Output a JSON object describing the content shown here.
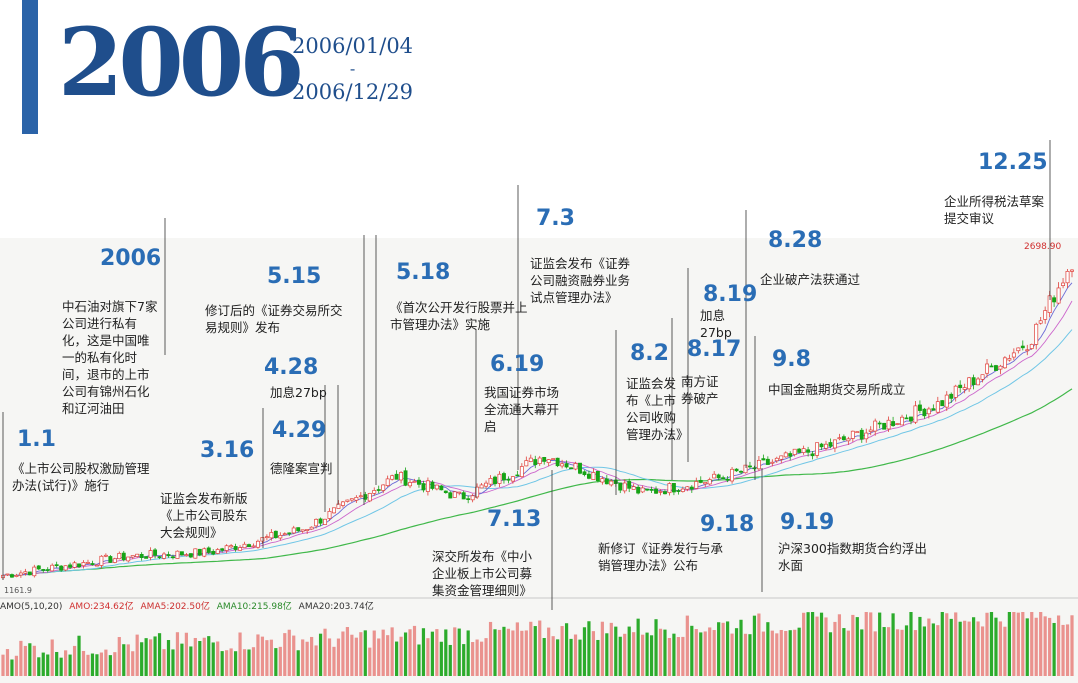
{
  "header": {
    "year": "2006",
    "start_date": "2006/01/04",
    "separator": "-",
    "end_date": "2006/12/29"
  },
  "colors": {
    "accent": "#2a63a8",
    "date_label": "#2a6db5",
    "up_candle": "#e0403a",
    "down_candle": "#16a316",
    "ma5": "#6b6bd6",
    "ma10": "#cc66cc",
    "ma20": "#70c6e6",
    "ma60": "#40b84a"
  },
  "events": [
    {
      "date": "1.1",
      "text": "《上市公司股权激励管理办法(试行)》施行"
    },
    {
      "date": "2006",
      "text": "中石油对旗下7家公司进行私有化，这是中国唯一的私有化时间，退市的上市公司有锦州石化和辽河油田"
    },
    {
      "date": "3.16",
      "text": "证监会发布新版《上市公司股东大会规则》"
    },
    {
      "date": "4.28",
      "text": "加息27bp"
    },
    {
      "date": "4.29",
      "text": "德隆案宣判"
    },
    {
      "date": "5.15",
      "text": "修订后的《证券交易所交易规则》发布"
    },
    {
      "date": "5.18",
      "text": "《首次公开发行股票并上市管理办法》实施"
    },
    {
      "date": "6.19",
      "text": "我国证券市场全流通大幕开启"
    },
    {
      "date": "7.3",
      "text": "证监会发布《证券公司融资融券业务试点管理办法》"
    },
    {
      "date": "7.13",
      "text": "深交所发布《中小企业板上市公司募集资金管理细则》"
    },
    {
      "date": "8.2",
      "text": "证监会发布《上市公司收购管理办法》"
    },
    {
      "date": "8.17",
      "text": "南方证券破产"
    },
    {
      "date": "8.19",
      "text": "加息27bp"
    },
    {
      "date": "8.28",
      "text": "企业破产法获通过"
    },
    {
      "date": "9.8",
      "text": "中国金融期货交易所成立"
    },
    {
      "date": "9.18",
      "text": "新修订《证券发行与承销管理办法》公布"
    },
    {
      "date": "9.19",
      "text": "沪深300指数期货合约浮出水面"
    },
    {
      "date": "12.25",
      "text": "企业所得税法草案提交审议"
    }
  ],
  "chart_data": {
    "type": "candlestick",
    "title": "2006",
    "price_high_label": "2698.90",
    "price_low_label": "1161.9",
    "x_range": [
      "2006/01/04",
      "2006/12/29"
    ],
    "close_approx": [
      {
        "date": "2006-01-04",
        "close": 1180
      },
      {
        "date": "2006-02-15",
        "close": 1270
      },
      {
        "date": "2006-03-15",
        "close": 1290
      },
      {
        "date": "2006-04-15",
        "close": 1400
      },
      {
        "date": "2006-05-16",
        "close": 1650
      },
      {
        "date": "2006-06-07",
        "close": 1550
      },
      {
        "date": "2006-07-05",
        "close": 1750
      },
      {
        "date": "2006-08-07",
        "close": 1570
      },
      {
        "date": "2006-09-01",
        "close": 1640
      },
      {
        "date": "2006-10-09",
        "close": 1800
      },
      {
        "date": "2006-11-15",
        "close": 2000
      },
      {
        "date": "2006-12-15",
        "close": 2300
      },
      {
        "date": "2006-12-29",
        "close": 2675
      }
    ],
    "volume_legend": {
      "amo": "AMO(5,10,20)",
      "amo_val": "AMO:234.62亿",
      "ama5": "AMA5:202.50亿",
      "ama10": "AMA10:215.98亿",
      "ama20": "AMA20:203.74亿"
    }
  }
}
